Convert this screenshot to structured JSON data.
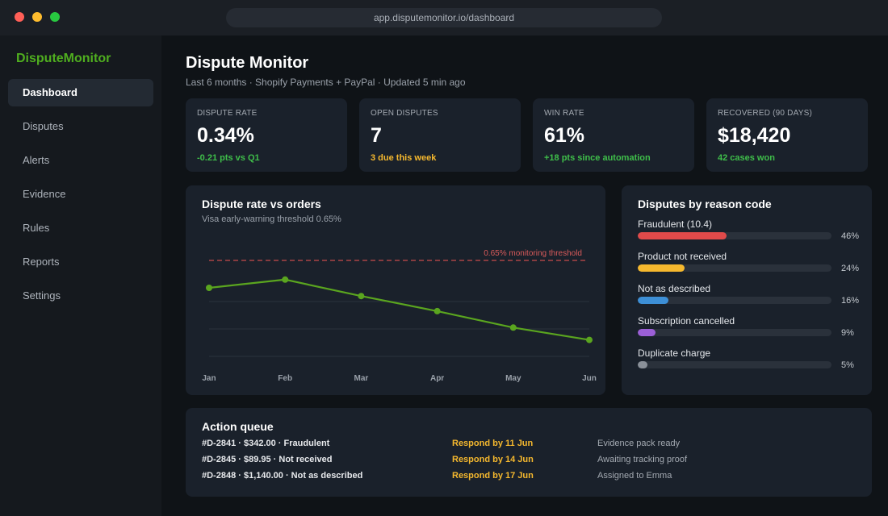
{
  "window": {
    "url": "app.disputemonitor.io/dashboard"
  },
  "sidebar": {
    "brand": "DisputeMonitor",
    "items": [
      {
        "label": "Dashboard",
        "active": true
      },
      {
        "label": "Disputes",
        "active": false
      },
      {
        "label": "Alerts",
        "active": false
      },
      {
        "label": "Evidence",
        "active": false
      },
      {
        "label": "Rules",
        "active": false
      },
      {
        "label": "Reports",
        "active": false
      },
      {
        "label": "Settings",
        "active": false
      }
    ]
  },
  "header": {
    "title": "Dispute Monitor",
    "subtitle": "Last 6 months · Shopify Payments + PayPal · Updated 5 min ago"
  },
  "kpis": [
    {
      "label": "DISPUTE RATE",
      "value": "0.34%",
      "delta": "-0.21 pts vs Q1",
      "delta_color": "#3fbf4a"
    },
    {
      "label": "OPEN DISPUTES",
      "value": "7",
      "delta": "3 due this week",
      "delta_color": "#f5b82e"
    },
    {
      "label": "WIN RATE",
      "value": "61%",
      "delta": "+18 pts since automation",
      "delta_color": "#3fbf4a"
    },
    {
      "label": "RECOVERED (90 DAYS)",
      "value": "$18,420",
      "delta": "42 cases won",
      "delta_color": "#3fbf4a"
    }
  ],
  "rate_chart": {
    "title": "Dispute rate vs orders",
    "subtitle": "Visa early-warning threshold 0.65%",
    "threshold_label": "0.65% monitoring threshold"
  },
  "chart_data": {
    "type": "line",
    "title": "Dispute rate vs orders",
    "x": [
      "Jan",
      "Feb",
      "Mar",
      "Apr",
      "May",
      "Jun"
    ],
    "series": [
      {
        "values": [
          0.55,
          0.58,
          0.52,
          0.465,
          0.405,
          0.36
        ],
        "color": "#5aa51f"
      }
    ],
    "threshold": {
      "value": 0.65,
      "label": "0.65% monitoring threshold",
      "color": "#c64b4b"
    },
    "ylim": [
      0.3,
      0.7
    ],
    "grid": true
  },
  "reasons": {
    "title": "Disputes by reason code",
    "items": [
      {
        "label": "Fraudulent (10.4)",
        "pct_label": "46%",
        "share": 0.46,
        "color": "#e04a4a"
      },
      {
        "label": "Product not received",
        "pct_label": "24%",
        "share": 0.24,
        "color": "#f5b82e"
      },
      {
        "label": "Not as described",
        "pct_label": "16%",
        "share": 0.16,
        "color": "#3d8fd6"
      },
      {
        "label": "Subscription cancelled",
        "pct_label": "9%",
        "share": 0.09,
        "color": "#9b5fd6"
      },
      {
        "label": "Duplicate charge",
        "pct_label": "5%",
        "share": 0.05,
        "color": "#8a9099"
      }
    ]
  },
  "action_queue": {
    "title": "Action queue",
    "rows": [
      {
        "id": "#D-2841 · $342.00 · Fraudulent",
        "due": "Respond by 11 Jun",
        "status": "Evidence pack ready"
      },
      {
        "id": "#D-2845 · $89.95 · Not received",
        "due": "Respond by 14 Jun",
        "status": "Awaiting tracking proof"
      },
      {
        "id": "#D-2848 · $1,140.00 · Not as described",
        "due": "Respond by 17 Jun",
        "status": "Assigned to Emma"
      }
    ]
  }
}
